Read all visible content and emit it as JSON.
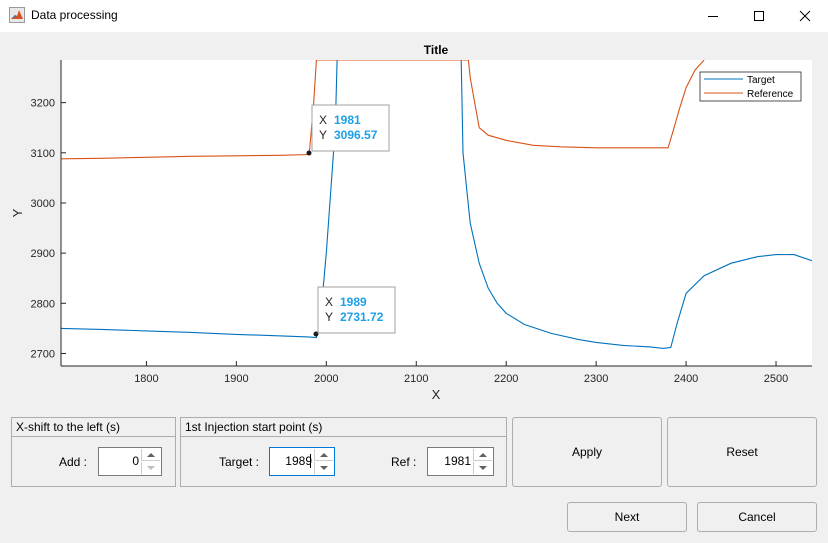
{
  "window": {
    "title": "Data processing",
    "icon": "matlab-icon",
    "controls": [
      "minimize-icon",
      "maximize-icon",
      "close-icon"
    ]
  },
  "plot": {
    "title": "Title",
    "xlabel": "X",
    "ylabel": "Y",
    "legend": [
      "Target",
      "Reference"
    ],
    "datatips": [
      {
        "x_label": "X",
        "x_value": "1981",
        "y_label": "Y",
        "y_value": "3096.57"
      },
      {
        "x_label": "X",
        "x_value": "1989",
        "y_label": "Y",
        "y_value": "2731.72"
      }
    ]
  },
  "chart_data": {
    "type": "line",
    "title": "Title",
    "xlabel": "X",
    "ylabel": "Y",
    "xlim": [
      1705,
      2540
    ],
    "ylim": [
      2675,
      3285
    ],
    "xticks": [
      1800,
      1900,
      2000,
      2100,
      2200,
      2300,
      2400,
      2500
    ],
    "yticks": [
      2700,
      2800,
      2900,
      3000,
      3100,
      3200
    ],
    "grid": false,
    "legend_position": "top-right",
    "series": [
      {
        "name": "Target",
        "color": "#0072bd",
        "x": [
          1705,
          1750,
          1800,
          1850,
          1900,
          1950,
          1980,
          1989,
          1993,
          2000,
          2010,
          2012,
          2150,
          2152,
          2160,
          2170,
          2180,
          2190,
          2200,
          2220,
          2250,
          2280,
          2300,
          2330,
          2360,
          2375,
          2383,
          2390,
          2400,
          2420,
          2450,
          2480,
          2500,
          2520,
          2540
        ],
        "y": [
          2750,
          2748,
          2745,
          2742,
          2738,
          2735,
          2733,
          2731.72,
          2760,
          2900,
          3150,
          3285,
          3285,
          3100,
          2960,
          2880,
          2830,
          2800,
          2780,
          2758,
          2740,
          2728,
          2722,
          2716,
          2713,
          2710,
          2712,
          2760,
          2820,
          2855,
          2880,
          2893,
          2897,
          2897,
          2885
        ]
      },
      {
        "name": "Reference",
        "color": "#d95319",
        "x": [
          1705,
          1750,
          1800,
          1850,
          1900,
          1950,
          1981,
          1986,
          1989,
          2158,
          2160,
          2170,
          2180,
          2200,
          2230,
          2260,
          2300,
          2340,
          2370,
          2380,
          2385,
          2393,
          2400,
          2410,
          2420
        ],
        "y": [
          3088,
          3089,
          3091,
          3093,
          3094,
          3095,
          3096.57,
          3200,
          3285,
          3285,
          3250,
          3150,
          3135,
          3125,
          3115,
          3112,
          3110,
          3110,
          3110,
          3110,
          3140,
          3190,
          3230,
          3265,
          3285
        ]
      }
    ]
  },
  "xshift_group": {
    "title": "X-shift to the left (s)",
    "add_label": "Add :",
    "add_value": "0"
  },
  "injection_group": {
    "title": "1st Injection start point (s)",
    "target_label": "Target :",
    "target_value": "1989",
    "ref_label": "Ref :",
    "ref_value": "1981"
  },
  "buttons": {
    "apply": "Apply",
    "reset": "Reset",
    "next": "Next",
    "cancel": "Cancel"
  }
}
